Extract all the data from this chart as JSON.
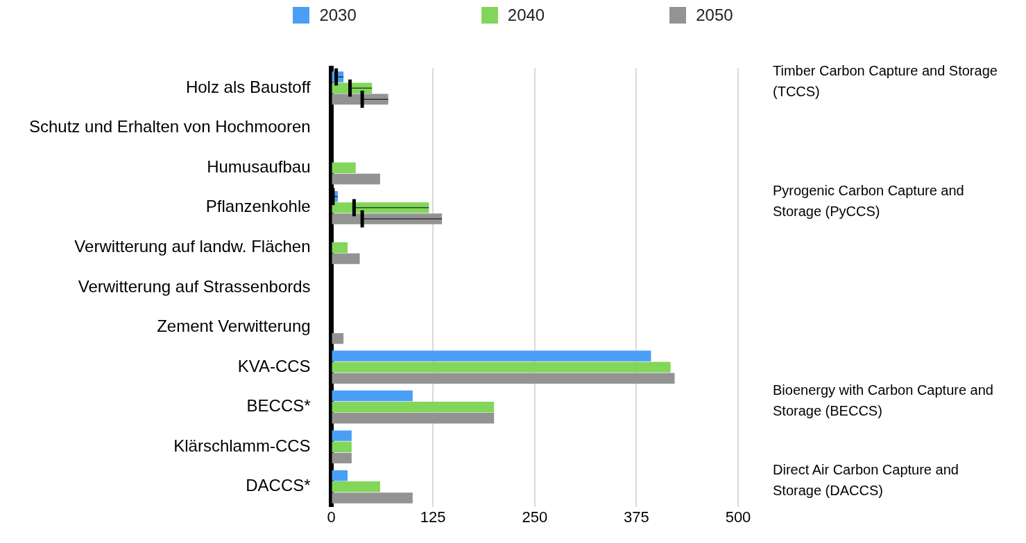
{
  "chart_data": {
    "type": "bar",
    "orientation": "horizontal",
    "categories": [
      "Holz als Baustoff",
      "Schutz und Erhalten von Hochmooren",
      "Humusaufbau",
      "Pflanzenkohle",
      "Verwitterung auf landw. Flächen",
      "Verwitterung auf Strassenbords",
      "Zement Verwitterung",
      "KVA-CCS",
      "BECCS*",
      "Klärschlamm-CCS",
      "DACCS*"
    ],
    "series": [
      {
        "name": "2030",
        "color": "#4a9ff5",
        "values": [
          15,
          0,
          0,
          8,
          0,
          0,
          0,
          393,
          100,
          25,
          20
        ],
        "errors": [
          [
            6,
            15
          ],
          null,
          null,
          [
            2,
            8
          ],
          null,
          null,
          null,
          null,
          null,
          null,
          null
        ]
      },
      {
        "name": "2040",
        "color": "#82d65a",
        "values": [
          50,
          0,
          30,
          120,
          20,
          0,
          0,
          417,
          200,
          25,
          60
        ],
        "errors": [
          [
            23,
            50
          ],
          null,
          null,
          [
            28,
            120
          ],
          null,
          null,
          null,
          null,
          null,
          null,
          null
        ]
      },
      {
        "name": "2050",
        "color": "#939393",
        "values": [
          70,
          0,
          60,
          136,
          35,
          0,
          15,
          422,
          200,
          25,
          100
        ],
        "errors": [
          [
            38,
            70
          ],
          null,
          null,
          [
            38,
            136
          ],
          null,
          null,
          null,
          null,
          null,
          null,
          null
        ]
      }
    ],
    "xlim": [
      0,
      500
    ],
    "xticks": [
      0,
      125,
      250,
      375,
      500
    ],
    "grid": "x",
    "legend": "top",
    "annotations": [
      "Timber Carbon Capture and Storage (TCCS)",
      "Pyrogenic Carbon Capture and Storage (PyCCS)",
      "Bioenergy with Carbon Capture and Storage (BECCS)",
      "Direct Air Carbon Capture and Storage (DACCS)"
    ]
  }
}
